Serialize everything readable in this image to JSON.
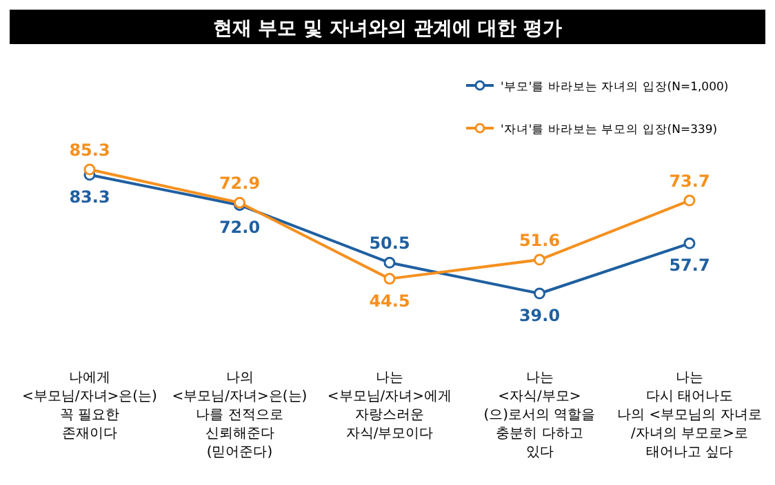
{
  "chart_data": {
    "type": "line",
    "title": "현재 부모 및 자녀와의 관계에 대한 평가",
    "categories": [
      "나에게\n<부모님/자녀>은(는)\n꼭 필요한\n존재이다",
      "나의\n<부모님/자녀>은(는)\n나를 전적으로\n신뢰해준다\n(믿어준다)",
      "나는\n<부모님/자녀>에게\n자랑스러운\n자식/부모이다",
      "나는\n<자식/부모>\n(으)로서의 역할을\n충분히 다하고\n있다",
      "나는\n다시 태어나도\n나의 <부모님의 자녀로\n/자녀의 부모로>로\n태어나고 싶다"
    ],
    "series": [
      {
        "name": "'부모'를 바라보는 자녀의 입장(N=1,000)",
        "color": "#1f5fa0",
        "values": [
          83.3,
          72.0,
          50.5,
          39.0,
          57.7
        ],
        "value_labels": [
          "83.3",
          "72.0",
          "50.5",
          "39.0",
          "57.7"
        ]
      },
      {
        "name": "'자녀'를 바라보는 부모의 입장(N=339)",
        "color": "#f5901e",
        "values": [
          85.3,
          72.9,
          44.5,
          51.6,
          73.7
        ],
        "value_labels": [
          "85.3",
          "72.9",
          "44.5",
          "51.6",
          "73.7"
        ]
      }
    ],
    "legend": "top right",
    "marker": "circle",
    "data_labels": true
  }
}
